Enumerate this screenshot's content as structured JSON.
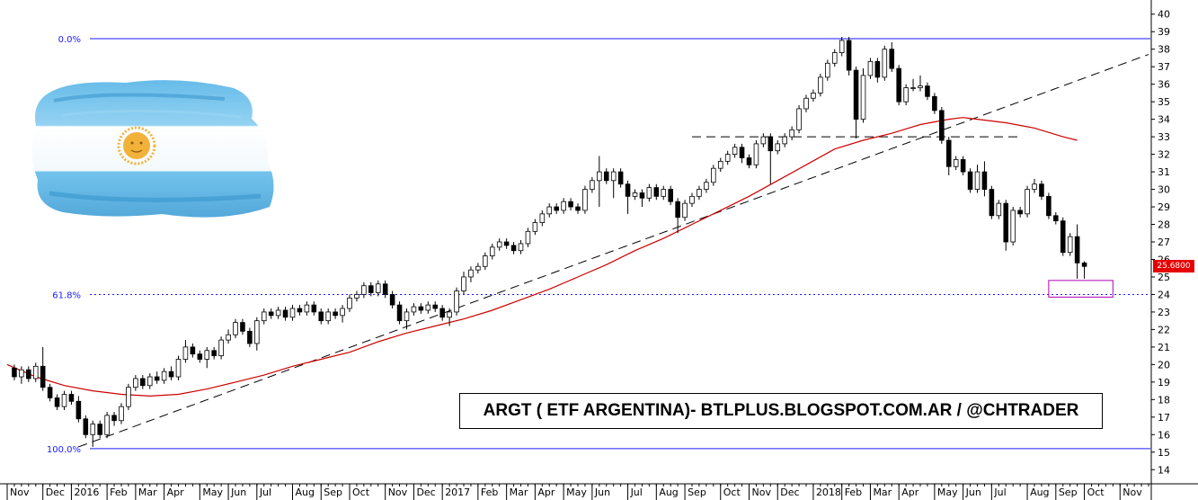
{
  "chart_data": {
    "type": "candlestick",
    "ticker_title": "ARGT ( ETF ARGENTINA)- BTLPLUS.BLOGSPOT.COM.AR / @CHTRADER",
    "last_price_label": "25.6800",
    "ylim": [
      13.5,
      40.5
    ],
    "y_ticks": [
      14,
      15,
      16,
      17,
      18,
      19,
      20,
      21,
      22,
      23,
      24,
      25,
      26,
      27,
      28,
      29,
      30,
      31,
      32,
      33,
      34,
      35,
      36,
      37,
      38,
      39,
      40
    ],
    "x_range_weeks": [
      0,
      160
    ],
    "x_labels": [
      {
        "label": "Nov",
        "x": 0
      },
      {
        "label": "Dec",
        "x": 5
      },
      {
        "label": "2016",
        "x": 9
      },
      {
        "label": "Feb",
        "x": 14
      },
      {
        "label": "Mar",
        "x": 18
      },
      {
        "label": "Apr",
        "x": 22
      },
      {
        "label": "May",
        "x": 27
      },
      {
        "label": "Jun",
        "x": 31
      },
      {
        "label": "Jul",
        "x": 35
      },
      {
        "label": "Aug",
        "x": 40
      },
      {
        "label": "Sep",
        "x": 44
      },
      {
        "label": "Oct",
        "x": 48
      },
      {
        "label": "Nov",
        "x": 53
      },
      {
        "label": "Dec",
        "x": 57
      },
      {
        "label": "2017",
        "x": 61
      },
      {
        "label": "Feb",
        "x": 66
      },
      {
        "label": "Mar",
        "x": 70
      },
      {
        "label": "Apr",
        "x": 74
      },
      {
        "label": "May",
        "x": 78
      },
      {
        "label": "Jun",
        "x": 82
      },
      {
        "label": "Jul",
        "x": 87
      },
      {
        "label": "Aug",
        "x": 91
      },
      {
        "label": "Sep",
        "x": 95
      },
      {
        "label": "Oct",
        "x": 100
      },
      {
        "label": "Nov",
        "x": 104
      },
      {
        "label": "Dec",
        "x": 108
      },
      {
        "label": "2018",
        "x": 113
      },
      {
        "label": "Feb",
        "x": 117
      },
      {
        "label": "Mar",
        "x": 121
      },
      {
        "label": "Apr",
        "x": 125
      },
      {
        "label": "May",
        "x": 130
      },
      {
        "label": "Jun",
        "x": 134
      },
      {
        "label": "Jul",
        "x": 138
      },
      {
        "label": "Aug",
        "x": 143
      },
      {
        "label": "Sep",
        "x": 147
      },
      {
        "label": "Oct",
        "x": 151
      },
      {
        "label": "Nov",
        "x": 156
      }
    ],
    "candles": [
      [
        19.8,
        19.3,
        20.0,
        19.1
      ],
      [
        19.3,
        19.7,
        19.9,
        18.9
      ],
      [
        19.7,
        19.2,
        19.9,
        19.0
      ],
      [
        19.2,
        19.9,
        20.1,
        19.0
      ],
      [
        19.9,
        18.7,
        21.0,
        18.5
      ],
      [
        18.7,
        18.1,
        18.9,
        17.9
      ],
      [
        18.1,
        17.6,
        18.3,
        17.4
      ],
      [
        17.6,
        18.3,
        18.5,
        17.4
      ],
      [
        18.3,
        17.9,
        18.5,
        17.7
      ],
      [
        17.9,
        16.9,
        18.2,
        16.7
      ],
      [
        16.9,
        16.0,
        17.1,
        15.8
      ],
      [
        16.0,
        16.6,
        16.8,
        15.3
      ],
      [
        16.6,
        16.0,
        16.8,
        15.8
      ],
      [
        16.0,
        17.1,
        17.3,
        15.8
      ],
      [
        17.1,
        16.8,
        17.3,
        16.5
      ],
      [
        16.8,
        17.6,
        17.8,
        16.6
      ],
      [
        17.6,
        18.7,
        18.9,
        17.4
      ],
      [
        18.7,
        19.2,
        19.4,
        18.5
      ],
      [
        19.2,
        18.8,
        19.4,
        18.6
      ],
      [
        18.8,
        19.3,
        19.5,
        18.6
      ],
      [
        19.3,
        19.1,
        19.6,
        18.9
      ],
      [
        19.1,
        19.6,
        19.8,
        18.9
      ],
      [
        19.6,
        19.3,
        19.9,
        19.1
      ],
      [
        19.3,
        20.3,
        20.5,
        19.1
      ],
      [
        20.3,
        21.0,
        21.4,
        20.1
      ],
      [
        21.0,
        20.6,
        21.2,
        20.4
      ],
      [
        20.6,
        20.3,
        20.8,
        20.1
      ],
      [
        20.3,
        20.8,
        21.0,
        19.8
      ],
      [
        20.8,
        20.5,
        21.0,
        20.3
      ],
      [
        20.5,
        21.4,
        21.6,
        20.3
      ],
      [
        21.4,
        21.7,
        22.0,
        21.2
      ],
      [
        21.7,
        22.4,
        22.6,
        21.5
      ],
      [
        22.4,
        21.9,
        22.6,
        21.7
      ],
      [
        21.9,
        21.2,
        22.1,
        21.0
      ],
      [
        21.2,
        22.5,
        22.7,
        20.8
      ],
      [
        22.5,
        23.0,
        23.2,
        22.3
      ],
      [
        23.0,
        22.8,
        23.2,
        22.6
      ],
      [
        22.8,
        23.1,
        23.3,
        22.6
      ],
      [
        23.1,
        22.7,
        23.3,
        22.5
      ],
      [
        22.7,
        23.2,
        23.4,
        22.5
      ],
      [
        23.2,
        23.0,
        23.4,
        22.8
      ],
      [
        23.0,
        23.4,
        23.6,
        22.8
      ],
      [
        23.4,
        23.0,
        23.6,
        22.8
      ],
      [
        23.0,
        22.5,
        23.2,
        22.3
      ],
      [
        22.5,
        23.0,
        23.2,
        22.3
      ],
      [
        23.0,
        22.8,
        23.2,
        22.6
      ],
      [
        22.8,
        23.2,
        23.4,
        22.4
      ],
      [
        23.2,
        23.8,
        24.0,
        23.0
      ],
      [
        23.8,
        24.0,
        24.2,
        23.6
      ],
      [
        24.0,
        24.5,
        24.7,
        23.8
      ],
      [
        24.5,
        24.1,
        24.7,
        23.9
      ],
      [
        24.1,
        24.6,
        24.8,
        23.9
      ],
      [
        24.6,
        24.0,
        24.8,
        23.8
      ],
      [
        24.0,
        23.4,
        24.2,
        23.2
      ],
      [
        23.4,
        22.5,
        23.6,
        22.3
      ],
      [
        22.5,
        23.0,
        23.2,
        22.0
      ],
      [
        23.0,
        23.3,
        23.5,
        22.8
      ],
      [
        23.3,
        23.1,
        23.5,
        22.9
      ],
      [
        23.1,
        23.4,
        23.6,
        22.9
      ],
      [
        23.4,
        23.2,
        23.6,
        23.0
      ],
      [
        23.2,
        22.7,
        23.4,
        22.5
      ],
      [
        22.7,
        23.0,
        23.2,
        22.2
      ],
      [
        23.0,
        24.2,
        24.4,
        22.8
      ],
      [
        24.2,
        25.0,
        25.3,
        24.0
      ],
      [
        25.0,
        25.4,
        25.6,
        24.7
      ],
      [
        25.4,
        25.6,
        25.8,
        25.2
      ],
      [
        25.6,
        26.2,
        26.4,
        25.4
      ],
      [
        26.2,
        26.7,
        26.9,
        26.0
      ],
      [
        26.7,
        27.0,
        27.2,
        26.5
      ],
      [
        27.0,
        26.8,
        27.2,
        26.6
      ],
      [
        26.8,
        26.5,
        27.0,
        26.3
      ],
      [
        26.5,
        26.9,
        27.1,
        26.3
      ],
      [
        26.9,
        27.6,
        27.8,
        26.7
      ],
      [
        27.6,
        28.1,
        28.3,
        27.4
      ],
      [
        28.1,
        28.6,
        28.8,
        27.9
      ],
      [
        28.6,
        29.0,
        29.2,
        28.4
      ],
      [
        29.0,
        28.8,
        29.2,
        28.6
      ],
      [
        28.8,
        29.3,
        29.5,
        28.6
      ],
      [
        29.3,
        29.0,
        29.5,
        28.8
      ],
      [
        29.0,
        28.8,
        29.2,
        28.6
      ],
      [
        28.8,
        30.0,
        30.2,
        28.6
      ],
      [
        30.0,
        30.5,
        30.7,
        29.8
      ],
      [
        30.5,
        31.0,
        31.9,
        29.0
      ],
      [
        31.0,
        30.5,
        31.2,
        30.3
      ],
      [
        30.5,
        31.0,
        31.2,
        29.5
      ],
      [
        31.0,
        30.3,
        31.2,
        30.1
      ],
      [
        30.3,
        29.6,
        30.5,
        28.6
      ],
      [
        29.6,
        29.8,
        30.0,
        29.4
      ],
      [
        29.8,
        29.5,
        30.0,
        29.0
      ],
      [
        29.5,
        30.1,
        30.3,
        29.3
      ],
      [
        30.1,
        29.6,
        30.3,
        29.4
      ],
      [
        29.6,
        30.0,
        30.2,
        29.4
      ],
      [
        30.0,
        29.3,
        30.2,
        29.1
      ],
      [
        29.3,
        28.4,
        29.5,
        27.5
      ],
      [
        28.4,
        29.2,
        29.4,
        28.2
      ],
      [
        29.2,
        29.6,
        29.8,
        29.0
      ],
      [
        29.6,
        30.0,
        30.2,
        29.4
      ],
      [
        30.0,
        30.4,
        30.6,
        29.8
      ],
      [
        30.4,
        31.2,
        31.4,
        30.2
      ],
      [
        31.2,
        31.6,
        31.8,
        31.0
      ],
      [
        31.6,
        32.0,
        32.2,
        31.4
      ],
      [
        32.0,
        32.4,
        32.6,
        31.8
      ],
      [
        32.4,
        31.8,
        32.6,
        31.5
      ],
      [
        31.8,
        31.4,
        32.0,
        31.2
      ],
      [
        31.4,
        32.6,
        32.8,
        31.2
      ],
      [
        32.6,
        33.0,
        33.2,
        32.4
      ],
      [
        33.0,
        32.2,
        33.2,
        30.3
      ],
      [
        32.2,
        32.6,
        32.8,
        32.0
      ],
      [
        32.6,
        33.0,
        33.2,
        32.4
      ],
      [
        33.0,
        33.4,
        33.6,
        32.8
      ],
      [
        33.4,
        34.6,
        34.8,
        33.2
      ],
      [
        34.6,
        35.2,
        35.4,
        34.4
      ],
      [
        35.2,
        35.5,
        35.7,
        35.0
      ],
      [
        35.5,
        36.4,
        36.6,
        35.3
      ],
      [
        36.4,
        37.2,
        37.4,
        36.2
      ],
      [
        37.2,
        37.8,
        38.0,
        37.0
      ],
      [
        37.8,
        38.5,
        38.7,
        37.6
      ],
      [
        38.5,
        36.8,
        38.7,
        36.5
      ],
      [
        36.8,
        34.0,
        37.0,
        32.9
      ],
      [
        34.0,
        36.5,
        36.9,
        33.8
      ],
      [
        36.5,
        37.3,
        37.5,
        36.3
      ],
      [
        37.3,
        36.4,
        37.5,
        36.1
      ],
      [
        36.4,
        38.0,
        38.2,
        36.2
      ],
      [
        38.0,
        36.9,
        38.4,
        36.7
      ],
      [
        36.9,
        35.0,
        37.1,
        34.8
      ],
      [
        35.0,
        35.8,
        36.0,
        34.8
      ],
      [
        35.8,
        35.8,
        36.3,
        35.6
      ],
      [
        35.8,
        35.9,
        36.5,
        35.6
      ],
      [
        35.9,
        35.3,
        36.1,
        35.1
      ],
      [
        35.3,
        34.5,
        35.5,
        34.3
      ],
      [
        34.5,
        32.8,
        34.7,
        32.6
      ],
      [
        32.8,
        31.3,
        33.0,
        30.8
      ],
      [
        31.3,
        31.7,
        31.9,
        31.1
      ],
      [
        31.7,
        31.0,
        31.9,
        30.8
      ],
      [
        31.0,
        30.0,
        31.2,
        29.8
      ],
      [
        30.0,
        31.0,
        31.4,
        29.8
      ],
      [
        31.0,
        30.0,
        31.6,
        29.6
      ],
      [
        30.0,
        28.5,
        30.2,
        28.3
      ],
      [
        28.5,
        29.2,
        29.4,
        28.3
      ],
      [
        29.2,
        27.0,
        29.4,
        26.5
      ],
      [
        27.0,
        28.8,
        29.0,
        26.8
      ],
      [
        28.8,
        28.6,
        29.0,
        28.4
      ],
      [
        28.6,
        30.0,
        30.2,
        28.4
      ],
      [
        30.0,
        30.3,
        30.6,
        29.8
      ],
      [
        30.3,
        29.6,
        30.5,
        29.4
      ],
      [
        29.6,
        28.5,
        29.8,
        28.3
      ],
      [
        28.5,
        28.2,
        28.7,
        28.0
      ],
      [
        28.2,
        26.4,
        28.4,
        26.2
      ],
      [
        26.4,
        27.3,
        27.5,
        26.2
      ],
      [
        27.3,
        25.8,
        28.0,
        24.9
      ],
      [
        25.8,
        25.6,
        25.9,
        24.9
      ]
    ],
    "moving_average": [
      [
        0,
        20.0
      ],
      [
        4,
        19.3
      ],
      [
        8,
        18.8
      ],
      [
        12,
        18.5
      ],
      [
        16,
        18.3
      ],
      [
        20,
        18.2
      ],
      [
        24,
        18.3
      ],
      [
        28,
        18.6
      ],
      [
        32,
        19.0
      ],
      [
        36,
        19.4
      ],
      [
        40,
        19.9
      ],
      [
        44,
        20.3
      ],
      [
        48,
        20.7
      ],
      [
        52,
        21.3
      ],
      [
        56,
        21.8
      ],
      [
        60,
        22.2
      ],
      [
        64,
        22.6
      ],
      [
        68,
        23.1
      ],
      [
        72,
        23.7
      ],
      [
        76,
        24.3
      ],
      [
        80,
        25.0
      ],
      [
        84,
        25.7
      ],
      [
        88,
        26.5
      ],
      [
        92,
        27.2
      ],
      [
        96,
        28.0
      ],
      [
        100,
        28.8
      ],
      [
        104,
        29.6
      ],
      [
        108,
        30.5
      ],
      [
        112,
        31.4
      ],
      [
        116,
        32.3
      ],
      [
        120,
        32.8
      ],
      [
        124,
        33.2
      ],
      [
        128,
        33.7
      ],
      [
        132,
        34.0
      ],
      [
        134,
        34.1
      ],
      [
        136,
        34.0
      ],
      [
        140,
        33.8
      ],
      [
        144,
        33.5
      ],
      [
        148,
        33.0
      ],
      [
        150,
        32.8
      ]
    ],
    "trendline": [
      [
        10,
        15.3
      ],
      [
        160,
        37.7
      ]
    ],
    "resistance_line": {
      "y": 33.0,
      "x_start": 96,
      "x_end": 142
    },
    "fib_levels": [
      {
        "label": "0.0%",
        "y": 38.6,
        "style": "solid"
      },
      {
        "label": "61.8%",
        "y": 24.0,
        "style": "dotted"
      },
      {
        "label": "100.0%",
        "y": 15.2,
        "style": "solid"
      }
    ],
    "target_zone": {
      "x_start": 146,
      "x_end": 155,
      "y_low": 23.85,
      "y_high": 24.8
    },
    "colors": {
      "up_fill": "#ffffff",
      "down_fill": "#000000",
      "wick": "#000000",
      "moving_average": "#cc0000",
      "fib": "#1a1aff",
      "target_zone": "#b000b0",
      "last_price_bg": "#e60000",
      "flag_blue": "#5fb8e8",
      "flag_sun": "#f2b23a"
    },
    "decorations": {
      "flag_icon": "argentina-flag-icon"
    }
  }
}
